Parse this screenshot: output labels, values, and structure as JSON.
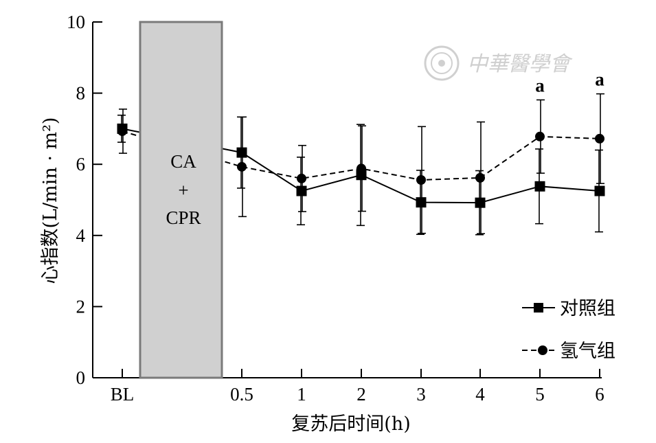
{
  "chart_data": {
    "type": "line",
    "categories": [
      "BL",
      "0.5",
      "1",
      "2",
      "3",
      "4",
      "5",
      "6"
    ],
    "xlabel": "复苏后时间(h)",
    "ylabel": "心指数(L/min · m²)",
    "ylim": [
      0,
      10
    ],
    "yticks": [
      "0",
      "2",
      "4",
      "6",
      "8",
      "10"
    ],
    "band": {
      "line1": "CA",
      "line2": "+",
      "line3": "CPR",
      "color": "#d0d0d0"
    },
    "legend_position": "bottom-right",
    "series": [
      {
        "name": "对照组",
        "marker": "square",
        "dash": "solid",
        "values": [
          7.0,
          6.33,
          5.25,
          5.7,
          4.93,
          4.92,
          5.38,
          5.25
        ],
        "errors": [
          0.38,
          1.0,
          0.95,
          1.42,
          0.9,
          0.9,
          1.05,
          1.15
        ]
      },
      {
        "name": "氢气组",
        "marker": "circle",
        "dash": "dashed",
        "values": [
          6.93,
          5.93,
          5.6,
          5.88,
          5.56,
          5.62,
          6.78,
          6.72
        ],
        "errors": [
          0.62,
          1.4,
          0.93,
          1.2,
          1.5,
          1.57,
          1.03,
          1.26
        ]
      }
    ],
    "annotations": [
      {
        "category": "5",
        "text": "a"
      },
      {
        "category": "6",
        "text": "a"
      }
    ]
  },
  "watermark": {
    "text": "中華醫學會",
    "icon": "society-seal-icon"
  }
}
